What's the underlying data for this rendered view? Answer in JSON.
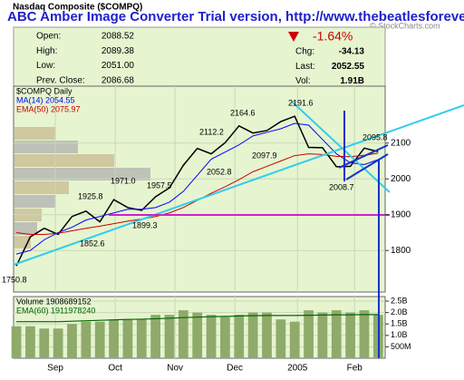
{
  "banner": "ABC Amber Image Converter Trial version, http://www.thebeatlesforever.com",
  "header": {
    "title": "Nasdaq Composite ($COMPQ)",
    "credit": "© StockCharts.com"
  },
  "quote": {
    "left": [
      {
        "label": "Open:",
        "value": "2088.52"
      },
      {
        "label": "High:",
        "value": "2089.38"
      },
      {
        "label": "Low:",
        "value": "2051.00"
      },
      {
        "label": "Prev. Close:",
        "value": "2086.68"
      }
    ],
    "change_pct": "-1.64%",
    "right": [
      {
        "label": "Chg:",
        "value": "-34.13"
      },
      {
        "label": "Last:",
        "value": "2052.55"
      },
      {
        "label": "Vol:",
        "value": "1.91B"
      }
    ]
  },
  "chart_data": [
    {
      "type": "line",
      "label": "$COMPQ Daily",
      "x": [
        0,
        1,
        2,
        3,
        4,
        5,
        6,
        7,
        8,
        9,
        10,
        11,
        12,
        13,
        14,
        15,
        16,
        17,
        18,
        19,
        20,
        21,
        22,
        23,
        24,
        25,
        26
      ],
      "series": [
        {
          "name": "$COMPQ",
          "color": "#000000",
          "values": [
            1757,
            1838,
            1862,
            1845,
            1895,
            1910,
            1880,
            1942,
            1920,
            1912,
            1950,
            1975,
            2038,
            2085,
            2070,
            2101,
            2148,
            2128,
            2135,
            2160,
            2175,
            2088,
            2087,
            2034,
            2035,
            2086,
            2076
          ]
        },
        {
          "name": "MA(14) 2054.55",
          "color": "#0000ff",
          "values": [
            1790,
            1800,
            1830,
            1850,
            1865,
            1885,
            1895,
            1905,
            1915,
            1915,
            1920,
            1935,
            1965,
            2010,
            2055,
            2075,
            2095,
            2120,
            2130,
            2140,
            2155,
            2150,
            2110,
            2070,
            2045,
            2040,
            2054
          ]
        },
        {
          "name": "EMA(50) 2075.97",
          "color": "#cc0000",
          "values": [
            1850,
            1845,
            1845,
            1848,
            1855,
            1862,
            1868,
            1875,
            1882,
            1888,
            1895,
            1905,
            1920,
            1940,
            1960,
            1978,
            1998,
            2020,
            2035,
            2050,
            2065,
            2070,
            2068,
            2063,
            2062,
            2066,
            2072
          ]
        }
      ],
      "xlim": [
        -0.2,
        26.5
      ],
      "xticks": [
        {
          "value": 2.8,
          "label": "Sep"
        },
        {
          "value": 7.1,
          "label": "Oct"
        },
        {
          "value": 11.4,
          "label": "Nov"
        },
        {
          "value": 15.7,
          "label": "Dec"
        },
        {
          "value": 20.2,
          "label": "2005"
        },
        {
          "value": 24.3,
          "label": "Feb"
        }
      ],
      "ylim": [
        1684,
        2259
      ],
      "yticks": [
        1800,
        1900,
        2000,
        2100
      ],
      "grid": true,
      "annotations": [
        "1750.8",
        "1852.6",
        "1925.8",
        "1971.0",
        "1957.5",
        "1899.3",
        "2112.2",
        "2052.8",
        "2164.6",
        "2097.9",
        "2191.6",
        "2008.7",
        "2095.8"
      ]
    },
    {
      "type": "bar",
      "label": "Volume 1908689152",
      "x": [
        0,
        1,
        2,
        3,
        4,
        5,
        6,
        7,
        8,
        9,
        10,
        11,
        12,
        13,
        14,
        15,
        16,
        17,
        18,
        19,
        20,
        21,
        22,
        23,
        24,
        25,
        26
      ],
      "series": [
        {
          "name": "Volume",
          "color": "#8faa6a",
          "values": [
            1400000000,
            1400000000,
            1300000000,
            1300000000,
            1500000000,
            1600000000,
            1600000000,
            1700000000,
            1700000000,
            1700000000,
            1900000000,
            1900000000,
            2100000000,
            2000000000,
            1900000000,
            1800000000,
            1900000000,
            2000000000,
            2000000000,
            1700000000,
            1600000000,
            2100000000,
            2000000000,
            2100000000,
            2000000000,
            2100000000,
            1900000000
          ]
        },
        {
          "name": "EMA(60) 1911978240",
          "color": "#006600",
          "values": [
            1600000000,
            1600000000,
            1600000000,
            1600000000,
            1620000000,
            1640000000,
            1660000000,
            1680000000,
            1700000000,
            1710000000,
            1730000000,
            1750000000,
            1780000000,
            1800000000,
            1820000000,
            1830000000,
            1850000000,
            1860000000,
            1870000000,
            1870000000,
            1870000000,
            1880000000,
            1890000000,
            1900000000,
            1900000000,
            1910000000,
            1912000000
          ]
        }
      ],
      "xlim": [
        -0.2,
        26.5
      ],
      "ylim": [
        0,
        2700000000
      ],
      "yticks": [
        {
          "value": 500000000,
          "label": "500M"
        },
        {
          "value": 1000000000,
          "label": "1.0B"
        },
        {
          "value": 1500000000,
          "label": "1.5B"
        },
        {
          "value": 2000000000,
          "label": "2.0B"
        },
        {
          "value": 2500000000,
          "label": "2.5B"
        }
      ],
      "grid": true
    }
  ]
}
